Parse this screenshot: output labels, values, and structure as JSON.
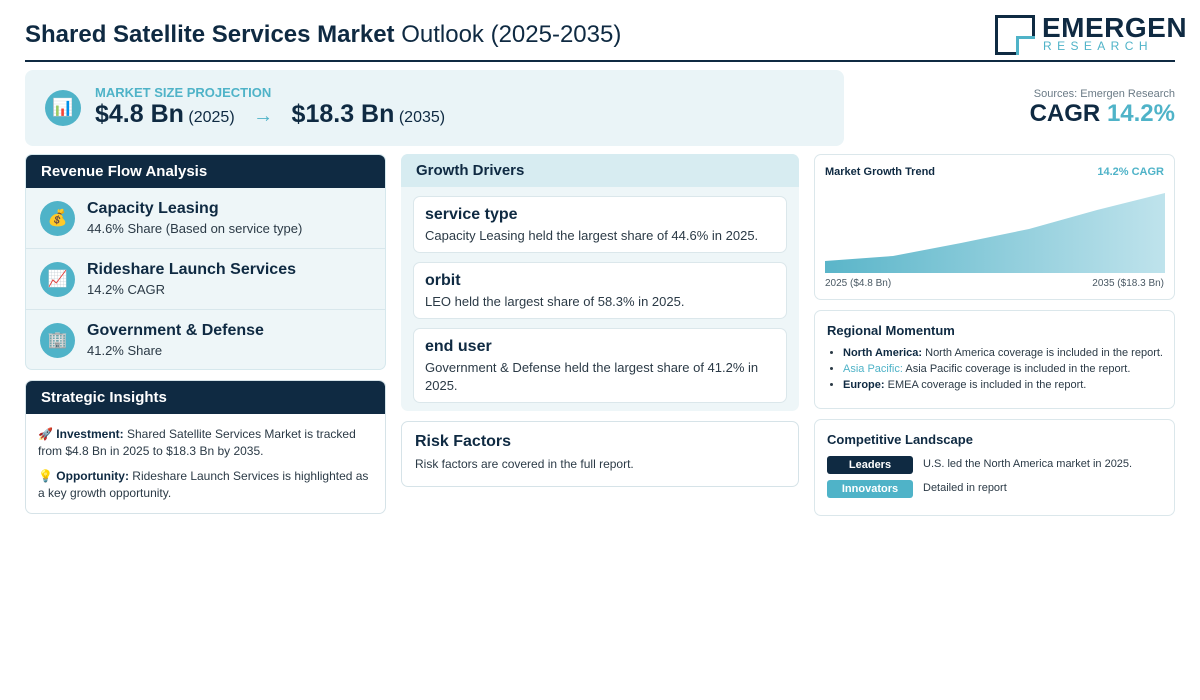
{
  "header": {
    "title_bold": "Shared Satellite Services Market",
    "title_rest": "Outlook (2025-2035)",
    "logo_name": "EMERGEN",
    "logo_sub": "RESEARCH"
  },
  "projection": {
    "icon": "bar-chart-icon",
    "label": "MARKET SIZE PROJECTION",
    "start_value": "$4.8 Bn",
    "start_year": "(2025)",
    "arrow": "→",
    "end_value": "$18.3 Bn",
    "end_year": "(2035)"
  },
  "sources": "Sources: Emergen Research",
  "cagr": {
    "label": "CAGR",
    "value": "14.2%"
  },
  "revenue_flow": {
    "title": "Revenue Flow Analysis",
    "items": [
      {
        "icon": "💰",
        "icon_name": "money-bag-icon",
        "title": "Capacity Leasing",
        "subtitle": "44.6% Share (Based on service type)"
      },
      {
        "icon": "📈",
        "icon_name": "trend-chart-icon",
        "title": "Rideshare Launch Services",
        "subtitle": "14.2% CAGR"
      },
      {
        "icon": "🏢",
        "icon_name": "building-icon",
        "title": "Government & Defense",
        "subtitle": "41.2% Share"
      }
    ]
  },
  "strategic_insights": {
    "title": "Strategic Insights",
    "investment_icon": "🚀",
    "investment_label": "Investment:",
    "investment_text": "Shared Satellite Services Market is tracked from $4.8 Bn in 2025 to $18.3 Bn by 2035.",
    "opportunity_icon": "💡",
    "opportunity_label": "Opportunity:",
    "opportunity_text": "Rideshare Launch Services is highlighted as a key growth opportunity."
  },
  "growth_drivers": {
    "title": "Growth Drivers",
    "items": [
      {
        "title": "service type",
        "text": "Capacity Leasing held the largest share of 44.6% in 2025."
      },
      {
        "title": "orbit",
        "text": "LEO held the largest share of 58.3% in 2025."
      },
      {
        "title": "end user",
        "text": "Government & Defense held the largest share of 41.2% in 2025."
      }
    ]
  },
  "risk_factors": {
    "title": "Risk Factors",
    "text": "Risk factors are covered in the full report."
  },
  "growth_trend": {
    "title": "Market Growth Trend",
    "cagr_label": "14.2% CAGR",
    "x_start_label": "2025 ($4.8 Bn)",
    "x_end_label": "2035 ($18.3 Bn)"
  },
  "regional_momentum": {
    "title": "Regional Momentum",
    "items": [
      {
        "label": "North America:",
        "text": "North America coverage is included in the report.",
        "highlight": false
      },
      {
        "label": "Asia Pacific:",
        "text": "Asia Pacific coverage is included in the report.",
        "highlight": true
      },
      {
        "label": "Europe:",
        "text": "EMEA coverage is included in the report.",
        "highlight": false
      }
    ]
  },
  "competitive_landscape": {
    "title": "Competitive Landscape",
    "rows": [
      {
        "tag": "Leaders",
        "text": "U.S. led the North America market in 2025.",
        "color": "#0f2a42"
      },
      {
        "tag": "Innovators",
        "text": "Detailed in report",
        "color": "#4fb3c8"
      }
    ]
  },
  "colors": {
    "navy": "#0f2a42",
    "accent": "#4fb3c8",
    "panel": "#eef6f8"
  }
}
